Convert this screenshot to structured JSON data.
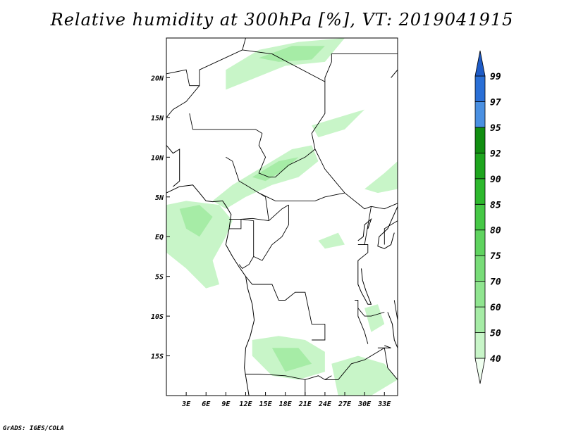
{
  "title": "Relative humidity at 300hPa [%], VT: 2019041915",
  "credit": "GrADS: IGES/COLA",
  "map": {
    "lon_range": [
      0,
      35
    ],
    "lat_range": [
      -20,
      25
    ],
    "lon_ticks": [
      {
        "value": 3,
        "label": "3E"
      },
      {
        "value": 6,
        "label": "6E"
      },
      {
        "value": 9,
        "label": "9E"
      },
      {
        "value": 12,
        "label": "12E"
      },
      {
        "value": 15,
        "label": "15E"
      },
      {
        "value": 18,
        "label": "18E"
      },
      {
        "value": 21,
        "label": "21E"
      },
      {
        "value": 24,
        "label": "24E"
      },
      {
        "value": 27,
        "label": "27E"
      },
      {
        "value": 30,
        "label": "30E"
      },
      {
        "value": 33,
        "label": "33E"
      }
    ],
    "lat_ticks": [
      {
        "value": 20,
        "label": "20N"
      },
      {
        "value": 15,
        "label": "15N"
      },
      {
        "value": 10,
        "label": "10N"
      },
      {
        "value": 5,
        "label": "5N"
      },
      {
        "value": 0,
        "label": "EQ"
      },
      {
        "value": -5,
        "label": "5S"
      },
      {
        "value": -10,
        "label": "10S"
      },
      {
        "value": -15,
        "label": "15S"
      }
    ]
  },
  "colorbar": {
    "levels": [
      "40",
      "50",
      "60",
      "70",
      "75",
      "80",
      "85",
      "90",
      "92",
      "95",
      "97",
      "99"
    ],
    "colors": [
      "#f0fff0",
      "#c8f5c8",
      "#a6eca6",
      "#90e590",
      "#78dc78",
      "#5fd35f",
      "#46c846",
      "#2db82d",
      "#1ea51e",
      "#118e11",
      "#4a90e2",
      "#2a6fd6",
      "#1e5bc6"
    ]
  },
  "humidity_areas": [
    {
      "level": 1,
      "poly": [
        [
          9,
          21
        ],
        [
          14,
          23.5
        ],
        [
          20,
          24.5
        ],
        [
          27,
          25
        ],
        [
          24,
          22
        ],
        [
          18,
          21.5
        ],
        [
          12,
          19.5
        ],
        [
          9,
          18.5
        ]
      ]
    },
    {
      "level": 2,
      "poly": [
        [
          14,
          22.5
        ],
        [
          19,
          24
        ],
        [
          24,
          24
        ],
        [
          22,
          22.3
        ],
        [
          17,
          22
        ]
      ]
    },
    {
      "level": 1,
      "poly": [
        [
          7,
          4.5
        ],
        [
          10,
          6.5
        ],
        [
          14,
          8.5
        ],
        [
          19,
          11
        ],
        [
          22,
          11.5
        ],
        [
          23,
          9.5
        ],
        [
          20,
          7.5
        ],
        [
          16,
          6.5
        ],
        [
          12,
          5
        ],
        [
          9,
          3.5
        ]
      ]
    },
    {
      "level": 2,
      "poly": [
        [
          13,
          7.5
        ],
        [
          17,
          9.5
        ],
        [
          20,
          10
        ],
        [
          18,
          8.5
        ],
        [
          15,
          7
        ]
      ]
    },
    {
      "level": 1,
      "poly": [
        [
          0,
          4
        ],
        [
          3,
          4.5
        ],
        [
          8,
          4
        ],
        [
          10,
          2
        ],
        [
          9,
          0
        ],
        [
          7,
          -3
        ],
        [
          8,
          -6
        ],
        [
          6,
          -6.5
        ],
        [
          3,
          -4
        ],
        [
          0,
          -2
        ]
      ]
    },
    {
      "level": 2,
      "poly": [
        [
          2,
          3.5
        ],
        [
          5,
          4
        ],
        [
          7,
          2.5
        ],
        [
          5,
          0
        ],
        [
          3,
          1
        ]
      ]
    },
    {
      "level": 1,
      "poly": [
        [
          13,
          -13
        ],
        [
          17,
          -12.5
        ],
        [
          21,
          -13
        ],
        [
          24,
          -14.5
        ],
        [
          24,
          -17
        ],
        [
          20,
          -18
        ],
        [
          16,
          -17.5
        ],
        [
          13,
          -15
        ]
      ]
    },
    {
      "level": 2,
      "poly": [
        [
          16,
          -14
        ],
        [
          20,
          -14
        ],
        [
          22,
          -16
        ],
        [
          18,
          -17
        ]
      ]
    },
    {
      "level": 1,
      "poly": [
        [
          25,
          -16
        ],
        [
          29,
          -15
        ],
        [
          33,
          -16
        ],
        [
          35,
          -18
        ],
        [
          31,
          -20
        ],
        [
          26,
          -20
        ]
      ]
    },
    {
      "level": 1,
      "poly": [
        [
          30,
          -9
        ],
        [
          32,
          -8.5
        ],
        [
          33,
          -11
        ],
        [
          31,
          -12
        ]
      ]
    },
    {
      "level": 1,
      "poly": [
        [
          22,
          14
        ],
        [
          26,
          15
        ],
        [
          30,
          16
        ],
        [
          27,
          13.5
        ],
        [
          23,
          12.5
        ]
      ]
    },
    {
      "level": 1,
      "poly": [
        [
          30,
          6
        ],
        [
          33,
          8
        ],
        [
          35,
          9.5
        ],
        [
          35,
          6
        ],
        [
          32,
          5.5
        ]
      ]
    },
    {
      "level": 1,
      "poly": [
        [
          23,
          -0.5
        ],
        [
          26,
          0.5
        ],
        [
          27,
          -1
        ],
        [
          24,
          -1.5
        ]
      ]
    }
  ],
  "borders": [
    [
      [
        0,
        15
      ],
      [
        1,
        16
      ],
      [
        3,
        17
      ],
      [
        5,
        19
      ],
      [
        5,
        21
      ],
      [
        11.5,
        23.5
      ],
      [
        12,
        25
      ]
    ],
    [
      [
        0,
        20.5
      ],
      [
        3,
        21
      ],
      [
        3.5,
        19
      ],
      [
        5,
        19
      ]
    ],
    [
      [
        11.5,
        23.5
      ],
      [
        16,
        23
      ],
      [
        24,
        19.5
      ],
      [
        24,
        15.5
      ],
      [
        22,
        13
      ],
      [
        22.5,
        11
      ],
      [
        24,
        8.5
      ],
      [
        27,
        5.5
      ],
      [
        30,
        3.5
      ],
      [
        31,
        3.8
      ]
    ],
    [
      [
        24,
        19.5
      ],
      [
        24,
        20
      ],
      [
        25,
        22
      ],
      [
        25,
        23
      ],
      [
        35,
        23
      ]
    ],
    [
      [
        3.5,
        15.5
      ],
      [
        4,
        13.5
      ],
      [
        6,
        13.5
      ],
      [
        8,
        13.5
      ],
      [
        11,
        13.5
      ],
      [
        13.5,
        13.5
      ],
      [
        14.5,
        13
      ]
    ],
    [
      [
        14.5,
        13
      ],
      [
        14,
        11.5
      ],
      [
        15,
        10
      ],
      [
        14,
        8
      ],
      [
        15.5,
        7.5
      ],
      [
        16.5,
        7.5
      ],
      [
        18.5,
        9
      ],
      [
        21,
        10
      ],
      [
        22.5,
        11
      ]
    ],
    [
      [
        9,
        10
      ],
      [
        10,
        9.5
      ],
      [
        11,
        7
      ],
      [
        12,
        6.5
      ],
      [
        14,
        5.5
      ],
      [
        15,
        5
      ],
      [
        15.5,
        2
      ]
    ],
    [
      [
        14,
        5.5
      ],
      [
        16.5,
        4.5
      ],
      [
        19,
        4.5
      ],
      [
        22.5,
        4.5
      ],
      [
        24,
        5
      ],
      [
        27,
        5.5
      ]
    ],
    [
      [
        15.5,
        2
      ],
      [
        17.5,
        3.5
      ],
      [
        18.5,
        4
      ]
    ],
    [
      [
        9.5,
        2.2
      ],
      [
        11.3,
        2.2
      ],
      [
        13,
        2.3
      ],
      [
        15.5,
        2
      ]
    ],
    [
      [
        9.5,
        1
      ],
      [
        11.3,
        1
      ],
      [
        11.3,
        2.2
      ]
    ],
    [
      [
        11.3,
        2.2
      ],
      [
        13.2,
        2
      ],
      [
        13.2,
        -2.5
      ],
      [
        12.5,
        -3.5
      ],
      [
        11.5,
        -4
      ],
      [
        11,
        -3.5
      ]
    ],
    [
      [
        13.2,
        -2.5
      ],
      [
        14.5,
        -3
      ],
      [
        16,
        -1
      ],
      [
        17.5,
        0
      ],
      [
        18.5,
        1.5
      ],
      [
        18.5,
        4
      ]
    ],
    [
      [
        12,
        -5
      ],
      [
        13,
        -6
      ],
      [
        16,
        -6
      ],
      [
        17,
        -8
      ],
      [
        18,
        -8
      ],
      [
        19.5,
        -7
      ],
      [
        21,
        -7
      ],
      [
        22,
        -11
      ],
      [
        24,
        -11
      ]
    ],
    [
      [
        12,
        -17.3
      ],
      [
        14,
        -17.3
      ],
      [
        18,
        -17.5
      ],
      [
        21,
        -18
      ],
      [
        23,
        -17.5
      ],
      [
        24,
        -18
      ],
      [
        25,
        -17.5
      ]
    ],
    [
      [
        21,
        -18
      ],
      [
        21,
        -20
      ]
    ],
    [
      [
        24,
        -18
      ],
      [
        26,
        -18
      ],
      [
        28,
        -16
      ],
      [
        30,
        -15.5
      ],
      [
        33,
        -14
      ]
    ],
    [
      [
        29,
        -9
      ],
      [
        30,
        -10
      ],
      [
        31,
        -10
      ],
      [
        33,
        -9.5
      ]
    ],
    [
      [
        22,
        -13
      ],
      [
        24,
        -13
      ],
      [
        24,
        -11
      ]
    ],
    [
      [
        28.5,
        -8
      ],
      [
        29,
        -8
      ],
      [
        29,
        -10
      ],
      [
        30,
        -12
      ],
      [
        30.5,
        -13.5
      ]
    ],
    [
      [
        29,
        -1
      ],
      [
        30.5,
        -1
      ],
      [
        30.5,
        -2
      ],
      [
        29,
        -3
      ]
    ],
    [
      [
        31,
        3.8
      ],
      [
        33,
        3.5
      ],
      [
        35,
        4.2
      ]
    ],
    [
      [
        31,
        3.8
      ],
      [
        30,
        -1
      ],
      [
        30.5,
        -1
      ]
    ],
    [
      [
        33,
        -1
      ],
      [
        33,
        1
      ],
      [
        35,
        2
      ]
    ],
    [
      [
        34.5,
        -8
      ],
      [
        35,
        -10.5
      ]
    ],
    [
      [
        33,
        -14
      ],
      [
        33.5,
        -16.5
      ],
      [
        35,
        -18
      ]
    ]
  ],
  "coastlines": [
    [
      [
        0,
        5.5
      ],
      [
        2,
        6.3
      ],
      [
        4,
        6.5
      ],
      [
        5,
        5.5
      ],
      [
        6,
        4.5
      ],
      [
        7,
        4.4
      ],
      [
        8.5,
        4.5
      ],
      [
        9,
        3.9
      ],
      [
        9.8,
        2.8
      ],
      [
        9.5,
        1
      ],
      [
        9,
        -1
      ],
      [
        10,
        -2.5
      ],
      [
        11,
        -3.8
      ],
      [
        12,
        -5
      ],
      [
        12.3,
        -6.5
      ],
      [
        13,
        -8.5
      ],
      [
        13.3,
        -10.5
      ],
      [
        12.7,
        -12.5
      ],
      [
        12,
        -14
      ],
      [
        11.8,
        -16.5
      ],
      [
        12.2,
        -18.5
      ],
      [
        12.5,
        -20
      ]
    ],
    [
      [
        0,
        11.5
      ],
      [
        1,
        10.5
      ],
      [
        2,
        11
      ],
      [
        2,
        7
      ],
      [
        1,
        6.3
      ]
    ],
    [
      [
        35,
        3.8
      ],
      [
        33.5,
        1
      ],
      [
        32.2,
        0
      ],
      [
        32,
        -1.2
      ],
      [
        33,
        -1.5
      ],
      [
        34,
        -1
      ],
      [
        34.5,
        0.5
      ]
    ],
    [
      [
        29,
        -3
      ],
      [
        29,
        -6
      ],
      [
        29.5,
        -7
      ],
      [
        30.5,
        -8.5
      ],
      [
        31,
        -8.5
      ],
      [
        30.2,
        -6.8
      ],
      [
        29.7,
        -5.5
      ],
      [
        29.5,
        -4
      ]
    ],
    [
      [
        33.5,
        -9.5
      ],
      [
        34.2,
        -11
      ],
      [
        34.5,
        -13
      ],
      [
        35,
        -14
      ]
    ],
    [
      [
        29,
        -0.5
      ],
      [
        29.8,
        0
      ],
      [
        30,
        1.5
      ],
      [
        31,
        2.2
      ],
      [
        30.5,
        1
      ]
    ],
    [
      [
        33,
        -13.7
      ],
      [
        34,
        -14
      ],
      [
        32,
        -14
      ]
    ],
    [
      [
        34,
        20
      ],
      [
        35,
        21
      ],
      [
        35,
        22
      ]
    ]
  ]
}
